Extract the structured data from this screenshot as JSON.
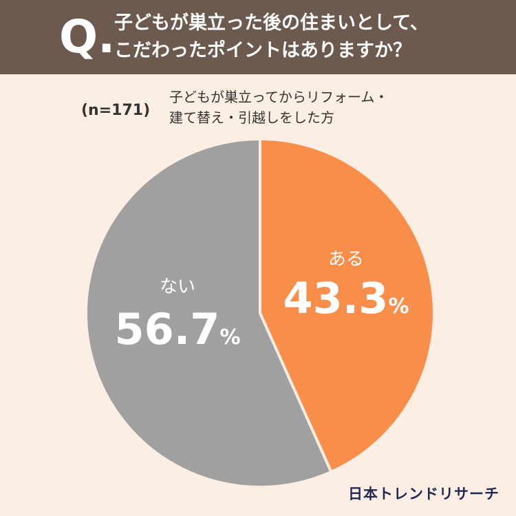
{
  "header": {
    "q_mark": "Q.",
    "question_lines": [
      "子どもが巣立った後の住まいとして、",
      "こだわったポイントはありますか？"
    ]
  },
  "sample_size": "(n=171)",
  "respondent_desc": [
    "子どもが巣立ってからリフォーム・",
    "建て替え・引越しをした方"
  ],
  "colors": {
    "header_bg": "#6b5a4d",
    "page_bg": "#fdeee3",
    "aru": "#f98d4a",
    "nai": "#a0a0a0"
  },
  "chart_data": {
    "type": "pie",
    "slices": [
      {
        "label": "ある",
        "value": 43.3,
        "value_text": "43.3",
        "unit": "%",
        "color": "#f98d4a"
      },
      {
        "label": "ない",
        "value": 56.7,
        "value_text": "56.7",
        "unit": "%",
        "color": "#a0a0a0"
      }
    ],
    "start": "12 o'clock",
    "direction": "clockwise"
  },
  "logo": {
    "text": "日本トレンドリサーチ"
  }
}
